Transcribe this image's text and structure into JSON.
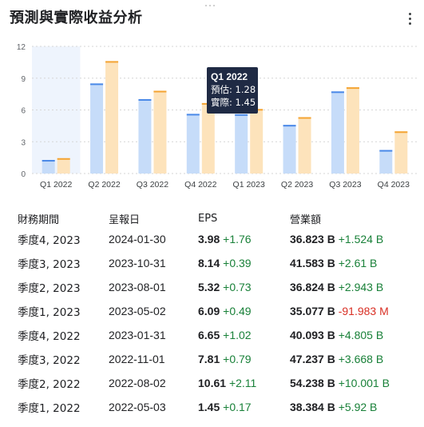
{
  "card": {
    "title": "預測與實際收益分析"
  },
  "chart_data": {
    "type": "bar",
    "categories": [
      "Q1 2022",
      "Q2 2022",
      "Q3 2022",
      "Q4 2022",
      "Q1 2023",
      "Q2 2023",
      "Q3 2023",
      "Q4 2023"
    ],
    "series": [
      {
        "name": "預估",
        "values": [
          1.28,
          8.5,
          7.02,
          5.63,
          5.6,
          4.59,
          7.75,
          2.22
        ]
      },
      {
        "name": "實際",
        "values": [
          1.45,
          10.61,
          7.81,
          6.65,
          6.09,
          5.32,
          8.14,
          3.98
        ]
      }
    ],
    "ylim": [
      0,
      12
    ],
    "yticks": [
      "0",
      "3",
      "6",
      "9",
      "12"
    ],
    "grid": true,
    "highlighted_category": "Q1 2022",
    "colors": {
      "estimate_fill": "#c6dcf9",
      "estimate_top": "#4a89e8",
      "actual_fill": "#fde3bb",
      "actual_top": "#f4a433",
      "highlight": "#eef4fd",
      "grid": "#d6d6d6"
    }
  },
  "tooltip": {
    "title": "Q1 2022",
    "estimate_label": "預估",
    "estimate_value": "1.28",
    "actual_label": "實際",
    "actual_value": "1.45"
  },
  "table": {
    "headers": [
      "財務期間",
      "呈報日",
      "EPS",
      "營業額"
    ],
    "rows": [
      {
        "period": "季度4, 2023",
        "date": "2024-01-30",
        "eps": "3.98",
        "eps_change": "+1.76",
        "eps_dir": "pos",
        "revenue": "36.823 B",
        "revenue_change": "+1.524 B",
        "revenue_dir": "pos"
      },
      {
        "period": "季度3, 2023",
        "date": "2023-10-31",
        "eps": "8.14",
        "eps_change": "+0.39",
        "eps_dir": "pos",
        "revenue": "41.583 B",
        "revenue_change": "+2.61 B",
        "revenue_dir": "pos"
      },
      {
        "period": "季度2, 2023",
        "date": "2023-08-01",
        "eps": "5.32",
        "eps_change": "+0.73",
        "eps_dir": "pos",
        "revenue": "36.824 B",
        "revenue_change": "+2.943 B",
        "revenue_dir": "pos"
      },
      {
        "period": "季度1, 2023",
        "date": "2023-05-02",
        "eps": "6.09",
        "eps_change": "+0.49",
        "eps_dir": "pos",
        "revenue": "35.077 B",
        "revenue_change": "-91.983 M",
        "revenue_dir": "neg"
      },
      {
        "period": "季度4, 2022",
        "date": "2023-01-31",
        "eps": "6.65",
        "eps_change": "+1.02",
        "eps_dir": "pos",
        "revenue": "40.093 B",
        "revenue_change": "+4.805 B",
        "revenue_dir": "pos"
      },
      {
        "period": "季度3, 2022",
        "date": "2022-11-01",
        "eps": "7.81",
        "eps_change": "+0.79",
        "eps_dir": "pos",
        "revenue": "47.237 B",
        "revenue_change": "+3.668 B",
        "revenue_dir": "pos"
      },
      {
        "period": "季度2, 2022",
        "date": "2022-08-02",
        "eps": "10.61",
        "eps_change": "+2.11",
        "eps_dir": "pos",
        "revenue": "54.238 B",
        "revenue_change": "+10.001 B",
        "revenue_dir": "pos"
      },
      {
        "period": "季度1, 2022",
        "date": "2022-05-03",
        "eps": "1.45",
        "eps_change": "+0.17",
        "eps_dir": "pos",
        "revenue": "38.384 B",
        "revenue_change": "+5.92 B",
        "revenue_dir": "pos"
      }
    ]
  },
  "icons": {
    "more": "more-vert-icon",
    "drag": "drag-handle-icon"
  }
}
